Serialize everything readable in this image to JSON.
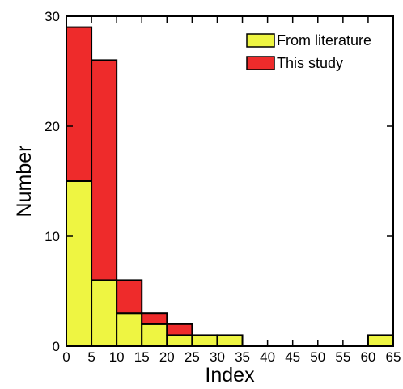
{
  "chart_data": {
    "type": "bar",
    "stacked": true,
    "bins": [
      {
        "range": [
          0,
          5
        ],
        "literature": 15,
        "this_study": 14
      },
      {
        "range": [
          5,
          10
        ],
        "literature": 6,
        "this_study": 20
      },
      {
        "range": [
          10,
          15
        ],
        "literature": 3,
        "this_study": 3
      },
      {
        "range": [
          15,
          20
        ],
        "literature": 2,
        "this_study": 1
      },
      {
        "range": [
          20,
          25
        ],
        "literature": 1,
        "this_study": 1
      },
      {
        "range": [
          25,
          30
        ],
        "literature": 1,
        "this_study": 0
      },
      {
        "range": [
          30,
          35
        ],
        "literature": 1,
        "this_study": 0
      },
      {
        "range": [
          35,
          40
        ],
        "literature": 0,
        "this_study": 0
      },
      {
        "range": [
          40,
          45
        ],
        "literature": 0,
        "this_study": 0
      },
      {
        "range": [
          45,
          50
        ],
        "literature": 0,
        "this_study": 0
      },
      {
        "range": [
          50,
          55
        ],
        "literature": 0,
        "this_study": 0
      },
      {
        "range": [
          55,
          60
        ],
        "literature": 0,
        "this_study": 0
      },
      {
        "range": [
          60,
          65
        ],
        "literature": 1,
        "this_study": 0
      }
    ],
    "series": [
      {
        "key": "literature",
        "name": "From literature",
        "color": "#EEF542"
      },
      {
        "key": "this_study",
        "name": "This study",
        "color": "#EE2B2B"
      }
    ],
    "xlabel": "Index",
    "ylabel": "Number",
    "xlim": [
      0,
      65
    ],
    "ylim": [
      0,
      30
    ],
    "xticks": [
      0,
      5,
      10,
      15,
      20,
      25,
      30,
      35,
      40,
      45,
      50,
      55,
      60,
      65
    ],
    "yticks": [
      0,
      10,
      20,
      30
    ],
    "legend_position": "top-right",
    "grid": false
  }
}
